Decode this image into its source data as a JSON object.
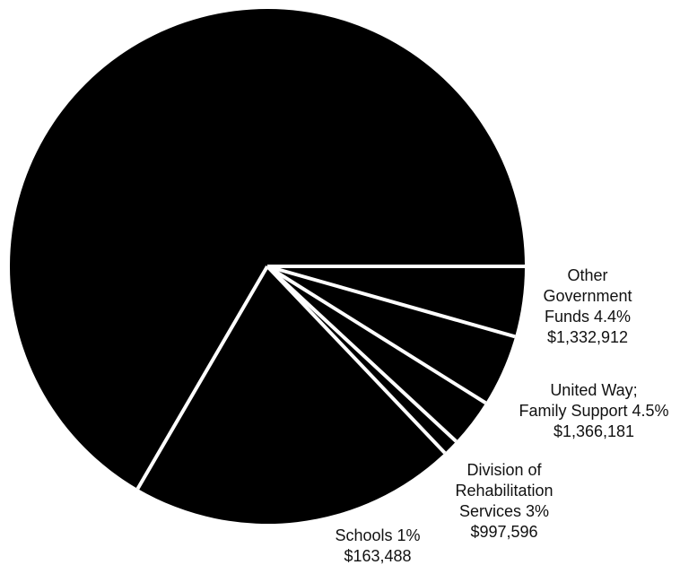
{
  "chart_data": {
    "type": "pie",
    "title": "",
    "start_angle_deg": 0,
    "direction": "clockwise",
    "colors": {
      "slice_fill": "#000000",
      "separator": "#ffffff",
      "label_text": "#111111"
    },
    "slices": [
      {
        "key": "other-government-funds",
        "percent": 4.4,
        "amount": "$1,332,912",
        "label_lines": [
          "Other",
          "Government",
          "Funds 4.4%",
          "$1,332,912"
        ]
      },
      {
        "key": "united-way-family-support",
        "percent": 4.5,
        "amount": "$1,366,181",
        "label_lines": [
          "United Way;",
          "Family Support 4.5%",
          "$1,366,181"
        ]
      },
      {
        "key": "division-of-rehabilitation-services",
        "percent": 3,
        "amount": "$997,596",
        "label_lines": [
          "Division of",
          "Rehabilitation",
          "Services 3%",
          "$997,596"
        ]
      },
      {
        "key": "schools",
        "percent": 1,
        "amount": "$163,488",
        "label_lines": [
          "Schools 1%",
          "$163,488"
        ]
      },
      {
        "key": "unlabeled-slice-1",
        "percent": 20.5,
        "amount": "",
        "label_lines": []
      },
      {
        "key": "unlabeled-slice-2",
        "percent": 66.6,
        "amount": "",
        "label_lines": []
      }
    ]
  }
}
